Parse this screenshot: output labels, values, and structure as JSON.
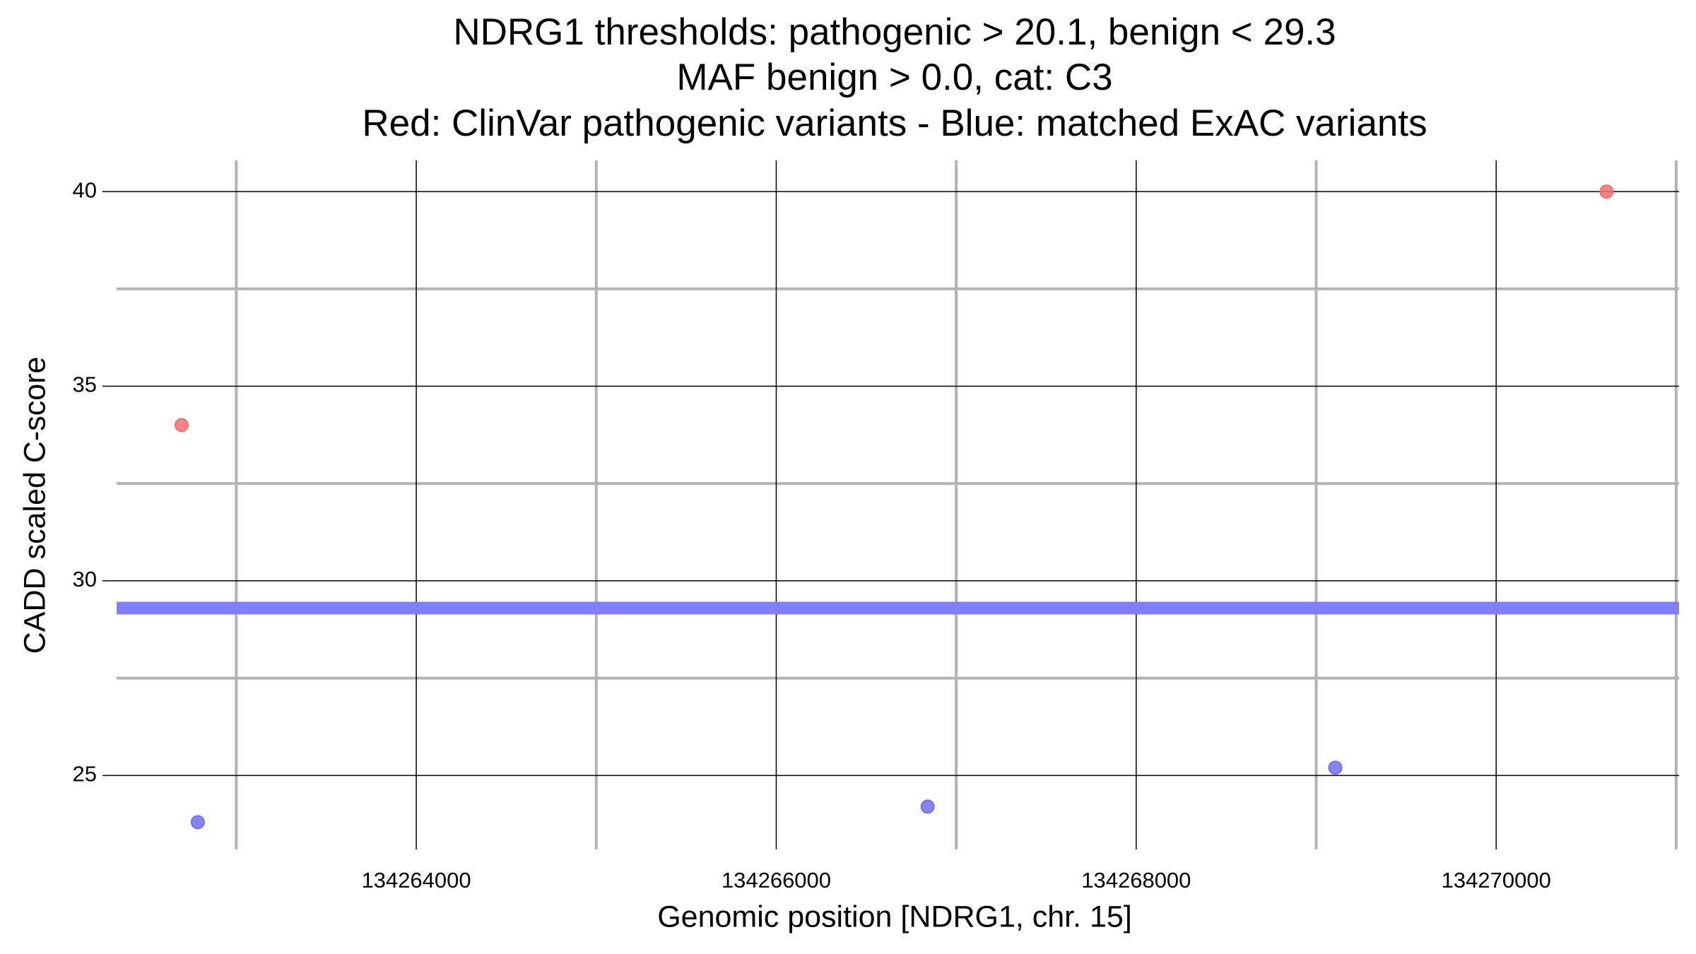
{
  "chart_data": {
    "type": "scatter",
    "title": [
      "NDRG1 thresholds: pathogenic > 20.1, benign < 29.3",
      "MAF benign > 0.0, cat: C3",
      "Red: ClinVar pathogenic variants - Blue: matched ExAC variants"
    ],
    "x_label": "Genomic position [NDRG1, chr. 15]",
    "y_label": "CADD scaled C-score",
    "xlim": [
      134262335,
      134271016
    ],
    "ylim": [
      23.1,
      40.8
    ],
    "xticks": [
      134264000,
      134266000,
      134268000,
      134270000
    ],
    "yticks": [
      25,
      30,
      35,
      40
    ],
    "xminorticks": [
      134263000,
      134265000,
      134267000,
      134269000,
      134271000
    ],
    "yminorticks": [
      27.5,
      32.5,
      37.5
    ],
    "grid": true,
    "hlines": [
      {
        "value": 29.3,
        "color": "#7f7ff7"
      }
    ],
    "series": [
      {
        "color": "#f07070",
        "x": [
          134262696,
          134270613
        ],
        "values": [
          34.0,
          40
        ]
      },
      {
        "color": "#7070f0",
        "x": [
          134262786,
          134266841,
          134269106
        ],
        "values": [
          23.8,
          24.2,
          25.2
        ]
      }
    ]
  }
}
